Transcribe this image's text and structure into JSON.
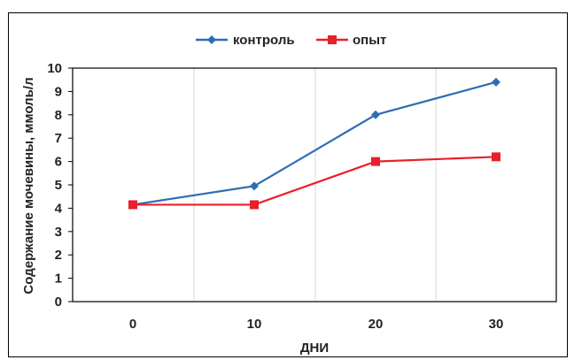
{
  "chart_data": {
    "type": "line",
    "x": [
      0,
      10,
      20,
      30
    ],
    "series": [
      {
        "name": "контроль",
        "values": [
          4.15,
          4.95,
          8.0,
          9.4
        ],
        "color": "#2E6DB4",
        "marker": "diamond"
      },
      {
        "name": "опыт",
        "values": [
          4.15,
          4.15,
          6.0,
          6.2
        ],
        "color": "#E8202A",
        "marker": "square"
      }
    ],
    "xlabel": "ДНИ",
    "ylabel": "Содержание мочевины, ммоль/л",
    "ylim": [
      0,
      10
    ],
    "yticks": [
      0,
      1,
      2,
      3,
      4,
      5,
      6,
      7,
      8,
      9,
      10
    ],
    "xticks": [
      0,
      10,
      20,
      30
    ],
    "grid": "vertical",
    "legend": "top-center"
  }
}
